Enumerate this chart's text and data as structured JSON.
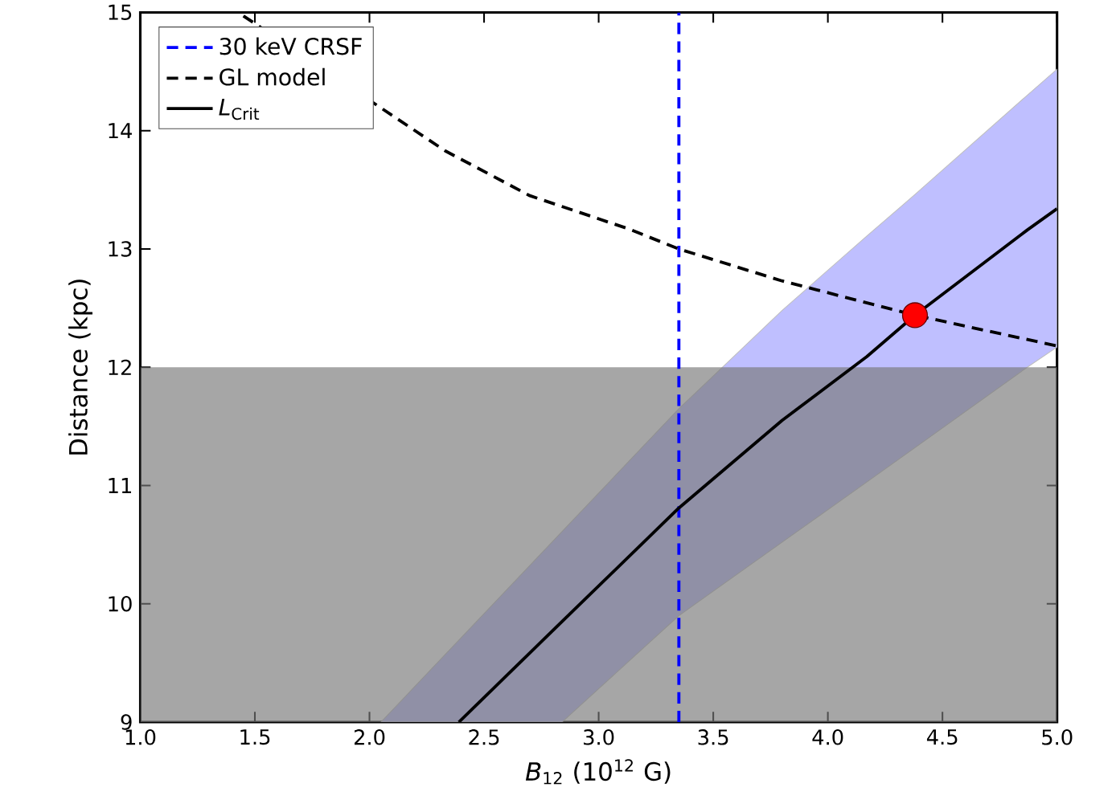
{
  "chart_data": {
    "type": "line",
    "xlabel": "*B*$_{12}$ (10$^{12}$ G)",
    "ylabel": "Distance (kpc)",
    "xlim": [
      1.0,
      5.0
    ],
    "ylim": [
      9,
      15
    ],
    "xticks": [
      {
        "value": 1.0,
        "label": "1.0"
      },
      {
        "value": 1.5,
        "label": "1.5"
      },
      {
        "value": 2.0,
        "label": "2.0"
      },
      {
        "value": 2.5,
        "label": "2.5"
      },
      {
        "value": 3.0,
        "label": "3.0"
      },
      {
        "value": 3.5,
        "label": "3.5"
      },
      {
        "value": 4.0,
        "label": "4.0"
      },
      {
        "value": 4.5,
        "label": "4.5"
      },
      {
        "value": 5.0,
        "label": "5.0"
      }
    ],
    "yticks": [
      9,
      10,
      11,
      12,
      13,
      14,
      15
    ],
    "legend": "top left",
    "grid": false,
    "bands": [
      {
        "axis": "y",
        "from": 9,
        "to": 12,
        "color": "#787878"
      }
    ],
    "series": [
      {
        "name": "30 keV CRSF",
        "color": "#0000ff",
        "line_style": "dashed",
        "marker": "none",
        "x": [
          3.35,
          3.35
        ],
        "values": [
          9,
          15
        ]
      },
      {
        "name": "GL model",
        "type": "line",
        "color": "#000000",
        "line_style": "dashed",
        "marker": "none",
        "x": [
          1.45,
          2.33,
          2.7,
          3.13,
          3.35,
          3.8,
          4.38,
          5.0
        ],
        "values": [
          14.97,
          13.83,
          13.45,
          13.17,
          13.0,
          12.73,
          12.44,
          12.18
        ]
      },
      {
        "name": "*L*$_{Crit}$",
        "color": "#000000",
        "line_style": "solid",
        "marker": "none",
        "x": [
          2.05,
          2.39,
          2.84,
          3.35,
          3.8,
          4.17,
          4.38,
          4.87,
          5.0
        ],
        "values": [
          null,
          9.0,
          9.85,
          10.81,
          11.55,
          12.09,
          12.44,
          13.16,
          13.34
        ],
        "upper": [
          9.0,
          null,
          10.61,
          11.65,
          12.48,
          13.11,
          13.46,
          14.3,
          14.52
        ],
        "lower": [
          9.0,
          null,
          9.0,
          9.9,
          10.52,
          11.03,
          11.32,
          12.0,
          12.17
        ]
      },
      {
        "type": "scatter",
        "color": "#ff0000",
        "marker": "circle",
        "x": [
          4.38
        ],
        "values": [
          12.44
        ]
      }
    ]
  }
}
